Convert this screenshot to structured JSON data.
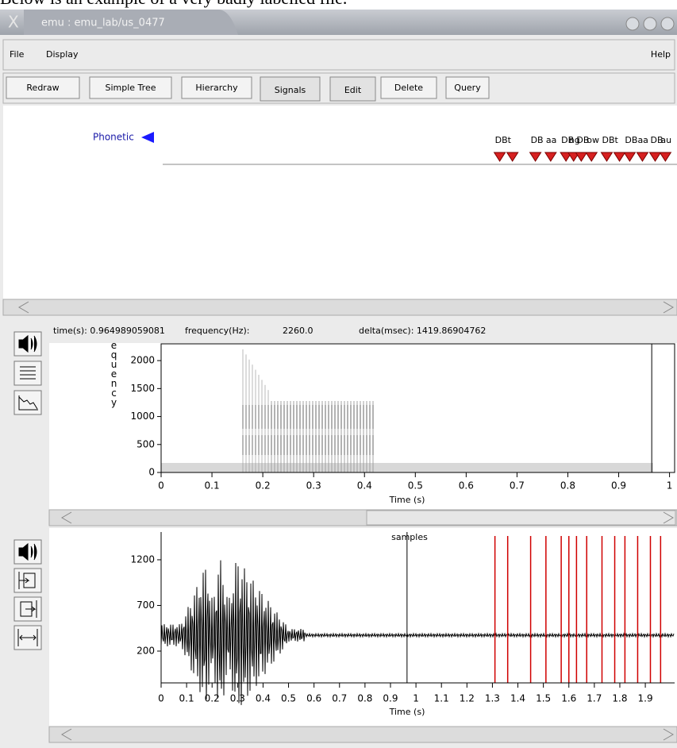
{
  "caption": "Below is an example of a very badly labelled file.",
  "window": {
    "title": "emu : emu_lab/us_0477"
  },
  "menu": {
    "left": [
      "File",
      "Display"
    ],
    "right": "Help"
  },
  "toolbar": [
    "Redraw",
    "Simple Tree",
    "Hierarchy",
    "Signals",
    "Edit",
    "Delete",
    "Query"
  ],
  "labels_panel": {
    "tier": "Phonetic",
    "labels": [
      {
        "text": "DB",
        "time": 1.31
      },
      {
        "text": "t",
        "time": 1.36
      },
      {
        "text": "DB",
        "time": 1.45
      },
      {
        "text": "aa",
        "time": 1.51
      },
      {
        "text": "DB",
        "time": 1.57
      },
      {
        "text": "ng",
        "time": 1.6
      },
      {
        "text": "DB",
        "time": 1.63
      },
      {
        "text": "ow",
        "time": 1.67
      },
      {
        "text": "DB",
        "time": 1.73
      },
      {
        "text": "t",
        "time": 1.78
      },
      {
        "text": "DB",
        "time": 1.82
      },
      {
        "text": "aa",
        "time": 1.87
      },
      {
        "text": "DB",
        "time": 1.92
      },
      {
        "text": "au",
        "time": 1.96
      }
    ]
  },
  "spectrogram": {
    "status": [
      "time(s): 0.964989059081",
      "frequency(Hz):",
      "2260.0",
      "delta(msec): 1419.86904762"
    ],
    "ylabel": "frequency",
    "xlabel": "Time (s)",
    "xlim": [
      0,
      1.01
    ],
    "ylim": [
      0,
      2300
    ],
    "xticks": [
      0,
      0.1,
      0.2,
      0.3,
      0.4,
      0.5,
      0.6,
      0.7,
      0.8,
      0.9,
      1
    ],
    "yticks": [
      0,
      500,
      1000,
      1500,
      2000
    ],
    "cursor": 0.965
  },
  "waveform": {
    "title": "samples",
    "xlabel": "Time (s)",
    "xlim": [
      0,
      2.015
    ],
    "ylim": [
      -148,
      1504
    ],
    "xticks": [
      0,
      0.1,
      0.2,
      0.3,
      0.4,
      0.5,
      0.6,
      0.7,
      0.8,
      0.9,
      1,
      1.1,
      1.2,
      1.3,
      1.4,
      1.5,
      1.6,
      1.7,
      1.8,
      1.9
    ],
    "yticks": [
      200,
      700,
      1200
    ],
    "cursor": 0.965
  }
}
